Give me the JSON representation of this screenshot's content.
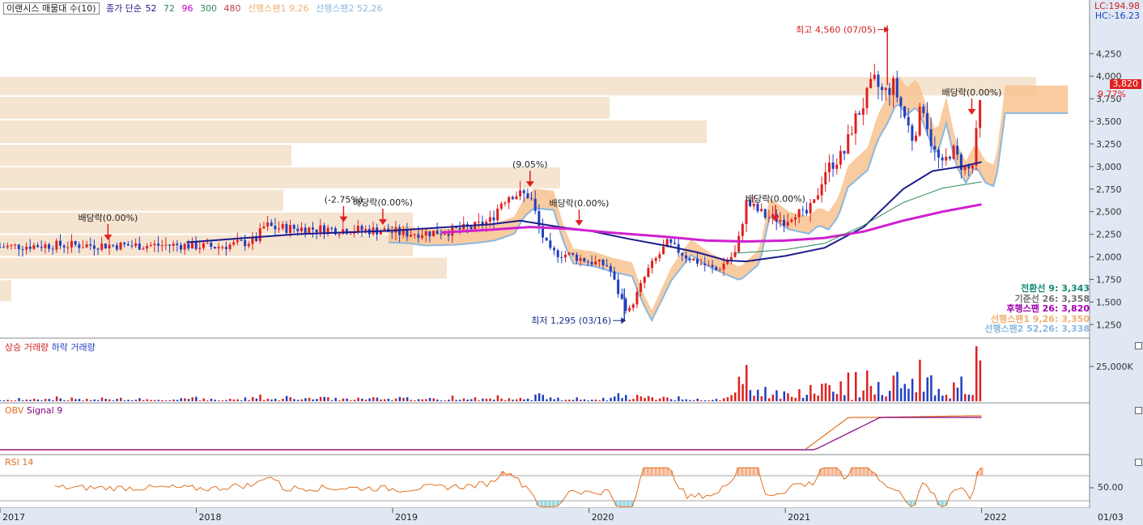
{
  "header": {
    "stock_title": "이랜시스 매물대 수(10)",
    "close_label": "종가 단순",
    "ma_periods": [
      "52",
      "72",
      "96",
      "300",
      "480"
    ],
    "ma_colors": [
      "#1c1c8c",
      "#2e8b57",
      "#c000c0",
      "#2e8b57",
      "#c04040"
    ],
    "span1_label": "선행스팬1 9,26",
    "span2_label": "선행스팬2 52,26"
  },
  "corner": {
    "lc": "LC:194.98",
    "hc": "HC:-16.23",
    "price_tag": "3,820",
    "change_pct": "9.77%"
  },
  "summary": [
    {
      "label": "전환선 9:",
      "value": "3,343",
      "color": "#108a70"
    },
    {
      "label": "기준선 26:",
      "value": "3,358",
      "color": "#707070"
    },
    {
      "label": "후행스팬 26:",
      "value": "3,820",
      "color": "#a000b0"
    },
    {
      "label": "선행스팬1 9,26:",
      "value": "3,350",
      "color": "#f0b070"
    },
    {
      "label": "선행스팬2 52,26:",
      "value": "3,338",
      "color": "#8ab8e0"
    }
  ],
  "panes": {
    "volume": {
      "up_label": "상승 거래량",
      "down_label": "하락 거래량",
      "tick": "25,000K"
    },
    "obv": {
      "label": "OBV",
      "signal": "Signal 9"
    },
    "rsi": {
      "label": "RSI 14",
      "tick": "50.00"
    }
  },
  "x_axis": [
    "2017",
    "2018",
    "2019",
    "2020",
    "2021",
    "2022",
    "01/03"
  ],
  "chart_data": {
    "type": "candlestick",
    "ylim": [
      1100,
      4700
    ],
    "y_ticks": [
      1250,
      1500,
      1750,
      2000,
      2250,
      2500,
      2750,
      3000,
      3250,
      3500,
      3750,
      4000,
      4250
    ],
    "y_tick_labels": [
      "1,250",
      "1,500",
      "1,750",
      "2,000",
      "2,250",
      "2,500",
      "2,750",
      "3,000",
      "3,250",
      "3,500",
      "3,750",
      "4,000",
      "4,250"
    ],
    "x_axis_labels": [
      "2017",
      "2018",
      "2019",
      "2020",
      "2021",
      "2022"
    ],
    "price_path": [
      [
        2017.0,
        2110
      ],
      [
        2017.1,
        2120
      ],
      [
        2017.3,
        2130
      ],
      [
        2017.5,
        2130
      ],
      [
        2017.7,
        2125
      ],
      [
        2017.9,
        2130
      ],
      [
        2018.0,
        2120
      ],
      [
        2018.1,
        2110
      ],
      [
        2018.2,
        2140
      ],
      [
        2018.3,
        2180
      ],
      [
        2018.35,
        2350
      ],
      [
        2018.4,
        2320
      ],
      [
        2018.6,
        2310
      ],
      [
        2018.8,
        2300
      ],
      [
        2018.95,
        2290
      ],
      [
        2019.05,
        2260
      ],
      [
        2019.2,
        2270
      ],
      [
        2019.3,
        2290
      ],
      [
        2019.4,
        2320
      ],
      [
        2019.5,
        2400
      ],
      [
        2019.55,
        2600
      ],
      [
        2019.6,
        2700
      ],
      [
        2019.7,
        2680
      ],
      [
        2019.75,
        2300
      ],
      [
        2019.8,
        2050
      ],
      [
        2019.9,
        2020
      ],
      [
        2020.0,
        1950
      ],
      [
        2020.1,
        1900
      ],
      [
        2020.15,
        1600
      ],
      [
        2020.2,
        1380
      ],
      [
        2020.3,
        1850
      ],
      [
        2020.4,
        2150
      ],
      [
        2020.5,
        2000
      ],
      [
        2020.6,
        1900
      ],
      [
        2020.65,
        1850
      ],
      [
        2020.75,
        2050
      ],
      [
        2020.8,
        2600
      ],
      [
        2020.9,
        2450
      ],
      [
        2021.0,
        2400
      ],
      [
        2021.05,
        2500
      ],
      [
        2021.1,
        2450
      ],
      [
        2021.15,
        2600
      ],
      [
        2021.2,
        2950
      ],
      [
        2021.3,
        3150
      ],
      [
        2021.35,
        3500
      ],
      [
        2021.4,
        3700
      ],
      [
        2021.45,
        3950
      ],
      [
        2021.5,
        3800
      ],
      [
        2021.55,
        3900
      ],
      [
        2021.6,
        3600
      ],
      [
        2021.65,
        3300
      ],
      [
        2021.7,
        3700
      ],
      [
        2021.75,
        3200
      ],
      [
        2021.8,
        3000
      ],
      [
        2021.85,
        3200
      ],
      [
        2021.9,
        3000
      ],
      [
        2021.95,
        2950
      ],
      [
        2022.0,
        3820
      ]
    ],
    "ma_series": [
      {
        "period": "52",
        "points": [
          [
            2017.95,
            2160
          ],
          [
            2018.5,
            2250
          ],
          [
            2019.0,
            2290
          ],
          [
            2019.5,
            2360
          ],
          [
            2019.65,
            2400
          ],
          [
            2019.85,
            2330
          ],
          [
            2020.0,
            2290
          ],
          [
            2020.2,
            2200
          ],
          [
            2020.4,
            2120
          ],
          [
            2020.55,
            2050
          ],
          [
            2020.7,
            1960
          ],
          [
            2020.8,
            1950
          ],
          [
            2021.0,
            2010
          ],
          [
            2021.2,
            2100
          ],
          [
            2021.4,
            2330
          ],
          [
            2021.6,
            2750
          ],
          [
            2021.75,
            2950
          ],
          [
            2021.9,
            3000
          ],
          [
            2022.0,
            3050
          ]
        ]
      },
      {
        "period": "96",
        "points": [
          [
            2019.25,
            2270
          ],
          [
            2019.5,
            2300
          ],
          [
            2019.7,
            2330
          ],
          [
            2019.9,
            2310
          ],
          [
            2020.1,
            2270
          ],
          [
            2020.4,
            2220
          ],
          [
            2020.6,
            2180
          ],
          [
            2020.8,
            2170
          ],
          [
            2021.0,
            2180
          ],
          [
            2021.2,
            2210
          ],
          [
            2021.4,
            2280
          ],
          [
            2021.6,
            2400
          ],
          [
            2021.8,
            2500
          ],
          [
            2022.0,
            2580
          ]
        ]
      },
      {
        "period": "72",
        "points": [
          [
            2020.75,
            2040
          ],
          [
            2021.0,
            2080
          ],
          [
            2021.2,
            2150
          ],
          [
            2021.4,
            2350
          ],
          [
            2021.6,
            2600
          ],
          [
            2021.8,
            2760
          ],
          [
            2022.0,
            2830
          ]
        ]
      }
    ],
    "events": [
      {
        "label": "배당락(0.00%)",
        "x": 2017.55,
        "y": 2130
      },
      {
        "label": "(-2.75%)",
        "x": 2018.75,
        "y": 2330
      },
      {
        "label": "배당락(0.00%)",
        "x": 2018.95,
        "y": 2300
      },
      {
        "label": "(9.05%)",
        "x": 2019.7,
        "y": 2720
      },
      {
        "label": "배당락(0.00%)",
        "x": 2019.95,
        "y": 2290
      },
      {
        "label": "배당락(0.00%)",
        "x": 2020.95,
        "y": 2340
      },
      {
        "label": "배당락(0.00%)",
        "x": 2021.95,
        "y": 3520
      }
    ],
    "high_note": "최고 4,560 (07/05)",
    "low_note": "최저 1,295 (03/16)",
    "high_value": 4560,
    "low_value": 1295
  }
}
